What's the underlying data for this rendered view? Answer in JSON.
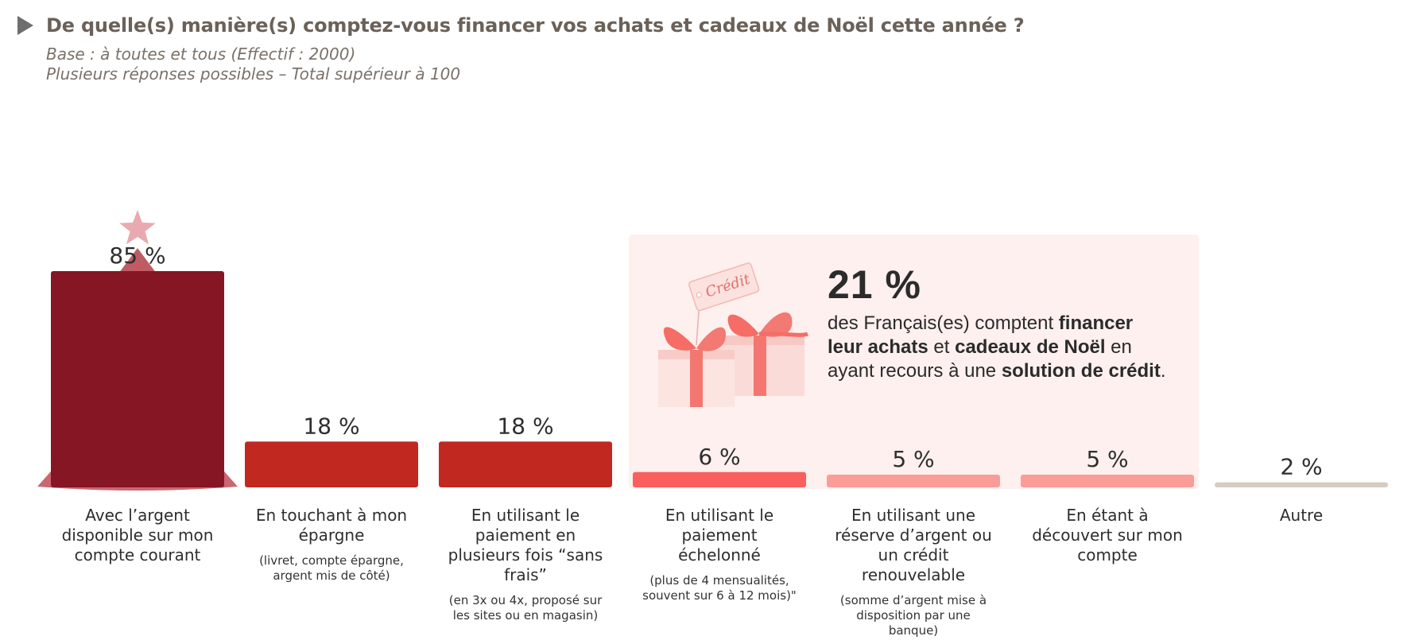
{
  "header": {
    "question": "De quelle(s) manière(s) comptez-vous financer vos achats et cadeaux de Noël cette année ?",
    "base": "Base : à toutes et tous (Effectif : 2000)",
    "multi": "Plusieurs réponses possibles – Total supérieur à 100"
  },
  "callout": {
    "value": "21 %",
    "t1": "des Français(es) comptent ",
    "b1": "financer leur achats",
    "t2": " et ",
    "b2": "cadeaux de Noël",
    "t3": " en ayant recours à une ",
    "b3": "solution de crédit",
    "t4": ".",
    "tag_text": "Crédit"
  },
  "chart_data": {
    "type": "bar",
    "ylim": [
      0,
      100
    ],
    "unit": "%",
    "categories": [
      {
        "label": "Avec l’argent disponible sur mon compte courant",
        "note": "",
        "value": 85,
        "value_label": "85 %",
        "color": "#861624"
      },
      {
        "label": "En touchant à mon épargne",
        "note": "(livret, compte épargne, argent mis de côté)",
        "value": 18,
        "value_label": "18 %",
        "color": "#c02820"
      },
      {
        "label": "En utilisant le paiement en plusieurs fois “sans frais”",
        "note": "(en 3x ou 4x, proposé sur les sites ou en magasin)",
        "value": 18,
        "value_label": "18 %",
        "color": "#c02820"
      },
      {
        "label": "En utilisant le paiement échelonné",
        "note": "(plus de 4 mensualités, souvent sur 6 à 12 mois)\"",
        "value": 6,
        "value_label": "6 %",
        "color": "#f95f5e"
      },
      {
        "label": "En utilisant une réserve d’argent ou un crédit renouvelable",
        "note": "(somme d’argent mise à disposition par une banque)",
        "value": 5,
        "value_label": "5 %",
        "color": "#fb9c98"
      },
      {
        "label": "En étant à découvert sur mon compte",
        "note": "",
        "value": 5,
        "value_label": "5 %",
        "color": "#fb9c98"
      },
      {
        "label": "Autre",
        "note": "",
        "value": 2,
        "value_label": "2 %",
        "color": "#d6ccc2"
      }
    ],
    "colors": {
      "highlight_panel": "#fdf0ee",
      "text": "#2e2e2e"
    }
  }
}
